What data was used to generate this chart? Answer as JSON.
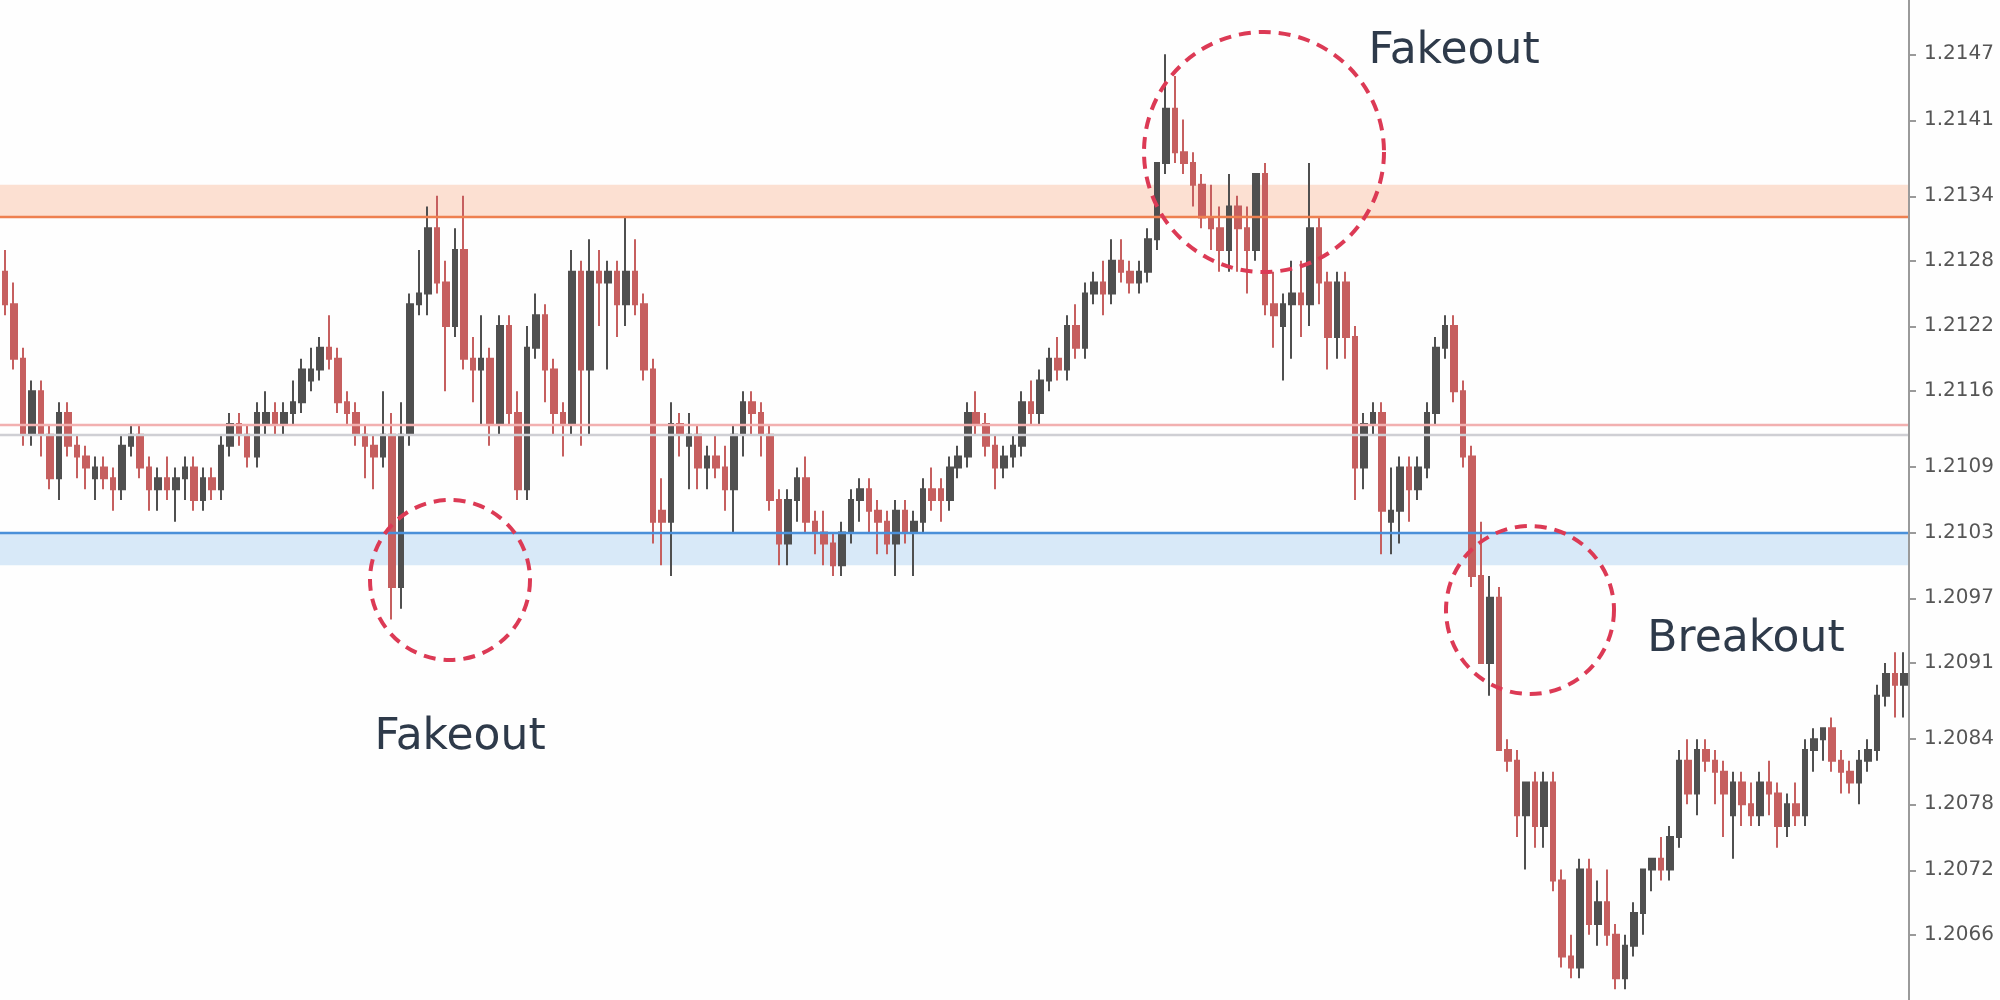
{
  "chart_data": {
    "type": "candlestick",
    "categories": [
      null,
      null,
      null,
      null,
      null,
      null,
      null,
      null,
      null,
      null,
      null,
      null,
      null,
      null,
      null,
      null,
      null,
      null,
      null,
      null,
      null,
      null,
      null,
      null,
      null,
      null,
      null,
      null,
      null,
      null,
      null,
      null,
      null,
      null,
      null,
      null,
      null,
      null,
      null,
      null,
      null,
      null,
      null,
      null,
      null,
      null,
      null,
      null,
      null,
      null,
      null,
      null,
      null,
      null,
      null,
      null,
      null,
      null,
      null,
      null,
      null,
      null,
      null,
      null,
      null,
      null,
      null,
      null,
      null,
      null,
      null,
      null,
      null,
      null,
      null,
      null,
      null,
      null,
      null,
      null,
      null,
      null,
      null,
      null,
      null,
      null,
      null,
      null,
      null,
      null,
      null,
      null,
      null,
      null,
      null,
      null,
      null,
      null,
      null,
      null,
      null,
      null,
      null,
      null,
      null,
      null,
      null,
      null,
      null,
      null,
      null,
      null,
      null,
      null,
      null,
      null,
      null,
      null,
      null,
      null,
      null,
      null,
      null,
      null,
      null,
      null,
      null,
      null,
      null,
      null,
      null,
      null,
      null,
      null,
      null,
      null,
      null,
      null,
      null,
      null,
      null,
      null,
      null,
      null,
      null,
      null,
      null,
      null,
      null,
      null,
      null,
      null,
      null,
      null,
      null,
      null,
      null,
      null,
      null,
      null,
      null,
      null,
      null,
      null,
      null,
      null,
      null,
      null,
      null,
      null,
      null,
      null,
      null,
      null,
      null,
      null,
      null,
      null,
      null,
      null,
      null,
      null,
      null,
      null,
      null,
      null,
      null,
      null,
      null,
      null,
      null,
      null,
      null,
      null,
      null,
      null,
      null,
      null,
      null,
      null,
      null,
      null,
      null,
      null,
      null,
      null,
      null,
      null,
      null,
      null,
      null,
      null
    ],
    "ohlc": [
      [
        1.2127,
        1.2129,
        1.2123,
        1.2124
      ],
      [
        1.2124,
        1.2126,
        1.2118,
        1.2119
      ],
      [
        1.2119,
        1.212,
        1.2111,
        1.2112
      ],
      [
        1.2112,
        1.2117,
        1.2111,
        1.2116
      ],
      [
        1.2116,
        1.2117,
        1.211,
        1.2112
      ],
      [
        1.2112,
        1.2113,
        1.2107,
        1.2108
      ],
      [
        1.2108,
        1.2115,
        1.2106,
        1.2114
      ],
      [
        1.2114,
        1.2115,
        1.211,
        1.2111
      ],
      [
        1.2111,
        1.2112,
        1.2108,
        1.211
      ],
      [
        1.211,
        1.2111,
        1.2107,
        1.2109
      ],
      [
        1.2108,
        1.211,
        1.2106,
        1.2109
      ],
      [
        1.2109,
        1.211,
        1.2107,
        1.2108
      ],
      [
        1.2108,
        1.2109,
        1.2105,
        1.2107
      ],
      [
        1.2107,
        1.2112,
        1.2106,
        1.2111
      ],
      [
        1.2111,
        1.2113,
        1.211,
        1.2112
      ],
      [
        1.2112,
        1.2113,
        1.2108,
        1.2109
      ],
      [
        1.2109,
        1.211,
        1.2105,
        1.2107
      ],
      [
        1.2107,
        1.2109,
        1.2105,
        1.2108
      ],
      [
        1.2108,
        1.211,
        1.2106,
        1.2107
      ],
      [
        1.2107,
        1.2109,
        1.2104,
        1.2108
      ],
      [
        1.2108,
        1.211,
        1.2106,
        1.2109
      ],
      [
        1.2109,
        1.211,
        1.2105,
        1.2106
      ],
      [
        1.2106,
        1.2109,
        1.2105,
        1.2108
      ],
      [
        1.2108,
        1.2109,
        1.2106,
        1.2107
      ],
      [
        1.2107,
        1.2112,
        1.2106,
        1.2111
      ],
      [
        1.2111,
        1.2114,
        1.211,
        1.2113
      ],
      [
        1.2113,
        1.2114,
        1.2111,
        1.2112
      ],
      [
        1.2112,
        1.2113,
        1.2109,
        1.211
      ],
      [
        1.211,
        1.2115,
        1.2109,
        1.2114
      ],
      [
        1.2113,
        1.2116,
        1.2112,
        1.2114
      ],
      [
        1.2114,
        1.2115,
        1.2112,
        1.2113
      ],
      [
        1.2113,
        1.2115,
        1.2112,
        1.2114
      ],
      [
        1.2114,
        1.2117,
        1.2113,
        1.2115
      ],
      [
        1.2115,
        1.2119,
        1.2114,
        1.2118
      ],
      [
        1.2117,
        1.212,
        1.2116,
        1.2118
      ],
      [
        1.2118,
        1.2121,
        1.2117,
        1.212
      ],
      [
        1.212,
        1.2123,
        1.2118,
        1.2119
      ],
      [
        1.2119,
        1.212,
        1.2114,
        1.2115
      ],
      [
        1.2115,
        1.2116,
        1.2113,
        1.2114
      ],
      [
        1.2114,
        1.2115,
        1.2111,
        1.2112
      ],
      [
        1.2112,
        1.2113,
        1.2108,
        1.2111
      ],
      [
        1.2111,
        1.2112,
        1.2107,
        1.211
      ],
      [
        1.211,
        1.2116,
        1.2109,
        1.2112
      ],
      [
        1.2112,
        1.2114,
        1.2095,
        1.2098
      ],
      [
        1.2098,
        1.2115,
        1.2096,
        1.2112
      ],
      [
        1.2112,
        1.2125,
        1.2111,
        1.2124
      ],
      [
        1.2124,
        1.2129,
        1.2123,
        1.2125
      ],
      [
        1.2125,
        1.2133,
        1.2123,
        1.2131
      ],
      [
        1.2131,
        1.2134,
        1.2125,
        1.2126
      ],
      [
        1.2126,
        1.2128,
        1.2116,
        1.2122
      ],
      [
        1.2122,
        1.2131,
        1.2121,
        1.2129
      ],
      [
        1.2129,
        1.2134,
        1.2118,
        1.2119
      ],
      [
        1.2119,
        1.2121,
        1.2115,
        1.2118
      ],
      [
        1.2118,
        1.2123,
        1.2113,
        1.2119
      ],
      [
        1.2119,
        1.212,
        1.2111,
        1.2113
      ],
      [
        1.2113,
        1.2123,
        1.2112,
        1.2122
      ],
      [
        1.2122,
        1.2123,
        1.2113,
        1.2114
      ],
      [
        1.2114,
        1.2116,
        1.2106,
        1.2107
      ],
      [
        1.2107,
        1.2122,
        1.2106,
        1.212
      ],
      [
        1.212,
        1.2125,
        1.2119,
        1.2123
      ],
      [
        1.2123,
        1.2124,
        1.2115,
        1.2118
      ],
      [
        1.2118,
        1.2119,
        1.2112,
        1.2114
      ],
      [
        1.2114,
        1.2115,
        1.211,
        1.2113
      ],
      [
        1.2113,
        1.2129,
        1.2112,
        1.2127
      ],
      [
        1.2127,
        1.2128,
        1.2111,
        1.2118
      ],
      [
        1.2118,
        1.213,
        1.2112,
        1.2127
      ],
      [
        1.2127,
        1.2129,
        1.2122,
        1.2126
      ],
      [
        1.2126,
        1.2128,
        1.2118,
        1.2127
      ],
      [
        1.2127,
        1.2128,
        1.2121,
        1.2124
      ],
      [
        1.2124,
        1.2132,
        1.2122,
        1.2127
      ],
      [
        1.2127,
        1.213,
        1.2123,
        1.2124
      ],
      [
        1.2124,
        1.2125,
        1.2117,
        1.2118
      ],
      [
        1.2118,
        1.2119,
        1.2102,
        1.2104
      ],
      [
        1.2105,
        1.2108,
        1.21,
        1.2104
      ],
      [
        1.2104,
        1.2115,
        1.2099,
        1.2113
      ],
      [
        1.2113,
        1.2114,
        1.211,
        1.2112
      ],
      [
        1.2111,
        1.2114,
        1.2107,
        1.2112
      ],
      [
        1.2112,
        1.2113,
        1.2107,
        1.2109
      ],
      [
        1.2109,
        1.2111,
        1.2107,
        1.211
      ],
      [
        1.211,
        1.2112,
        1.2108,
        1.2109
      ],
      [
        1.2109,
        1.2111,
        1.2105,
        1.2107
      ],
      [
        1.2107,
        1.2113,
        1.2103,
        1.2112
      ],
      [
        1.2112,
        1.2116,
        1.211,
        1.2115
      ],
      [
        1.2115,
        1.2116,
        1.2112,
        1.2114
      ],
      [
        1.2114,
        1.2115,
        1.211,
        1.2112
      ],
      [
        1.2112,
        1.2113,
        1.2105,
        1.2106
      ],
      [
        1.2106,
        1.2107,
        1.21,
        1.2102
      ],
      [
        1.2102,
        1.2107,
        1.21,
        1.2106
      ],
      [
        1.2106,
        1.2109,
        1.2104,
        1.2108
      ],
      [
        1.2108,
        1.211,
        1.2103,
        1.2104
      ],
      [
        1.2104,
        1.2105,
        1.2101,
        1.2103
      ],
      [
        1.2103,
        1.2105,
        1.21,
        1.2102
      ],
      [
        1.2102,
        1.2103,
        1.2099,
        1.21
      ],
      [
        1.21,
        1.2104,
        1.2099,
        1.2103
      ],
      [
        1.2103,
        1.2107,
        1.2102,
        1.2106
      ],
      [
        1.2106,
        1.2108,
        1.2104,
        1.2107
      ],
      [
        1.2107,
        1.2108,
        1.2103,
        1.2105
      ],
      [
        1.2105,
        1.2106,
        1.2101,
        1.2104
      ],
      [
        1.2104,
        1.2105,
        1.2101,
        1.2102
      ],
      [
        1.2102,
        1.2106,
        1.2099,
        1.2105
      ],
      [
        1.2105,
        1.2106,
        1.2102,
        1.2103
      ],
      [
        1.2103,
        1.2105,
        1.2099,
        1.2104
      ],
      [
        1.2104,
        1.2108,
        1.2103,
        1.2107
      ],
      [
        1.2107,
        1.2109,
        1.2105,
        1.2106
      ],
      [
        1.2107,
        1.2108,
        1.2104,
        1.2106
      ],
      [
        1.2106,
        1.211,
        1.2105,
        1.2109
      ],
      [
        1.2109,
        1.2111,
        1.2108,
        1.211
      ],
      [
        1.211,
        1.2115,
        1.2109,
        1.2114
      ],
      [
        1.2114,
        1.2116,
        1.2112,
        1.2113
      ],
      [
        1.2113,
        1.2114,
        1.211,
        1.2111
      ],
      [
        1.2111,
        1.2112,
        1.2107,
        1.2109
      ],
      [
        1.2109,
        1.2111,
        1.2108,
        1.211
      ],
      [
        1.211,
        1.2112,
        1.2109,
        1.2111
      ],
      [
        1.2111,
        1.2116,
        1.211,
        1.2115
      ],
      [
        1.2115,
        1.2117,
        1.2113,
        1.2114
      ],
      [
        1.2114,
        1.2118,
        1.2113,
        1.2117
      ],
      [
        1.2117,
        1.212,
        1.2116,
        1.2119
      ],
      [
        1.2119,
        1.2121,
        1.2117,
        1.2118
      ],
      [
        1.2118,
        1.2123,
        1.2117,
        1.2122
      ],
      [
        1.2122,
        1.2124,
        1.2119,
        1.212
      ],
      [
        1.212,
        1.2126,
        1.2119,
        1.2125
      ],
      [
        1.2125,
        1.2127,
        1.2124,
        1.2126
      ],
      [
        1.2126,
        1.2128,
        1.2123,
        1.2125
      ],
      [
        1.2125,
        1.213,
        1.2124,
        1.2128
      ],
      [
        1.2128,
        1.213,
        1.2126,
        1.2127
      ],
      [
        1.2127,
        1.2128,
        1.2125,
        1.2126
      ],
      [
        1.2126,
        1.2128,
        1.2125,
        1.2127
      ],
      [
        1.2127,
        1.2131,
        1.2126,
        1.213
      ],
      [
        1.213,
        1.2137,
        1.2129,
        1.2137
      ],
      [
        1.2137,
        1.2147,
        1.2136,
        1.2142
      ],
      [
        1.2142,
        1.2145,
        1.2137,
        1.2138
      ],
      [
        1.2138,
        1.2141,
        1.2136,
        1.2137
      ],
      [
        1.2137,
        1.2138,
        1.2133,
        1.2135
      ],
      [
        1.2135,
        1.2136,
        1.2131,
        1.2132
      ],
      [
        1.2132,
        1.2135,
        1.2129,
        1.2131
      ],
      [
        1.2131,
        1.2133,
        1.2127,
        1.2129
      ],
      [
        1.2129,
        1.2136,
        1.2127,
        1.2133
      ],
      [
        1.2133,
        1.2134,
        1.2127,
        1.2131
      ],
      [
        1.2131,
        1.2133,
        1.2125,
        1.2129
      ],
      [
        1.2129,
        1.2136,
        1.2128,
        1.2136
      ],
      [
        1.2136,
        1.2137,
        1.2123,
        1.2124
      ],
      [
        1.2124,
        1.2127,
        1.212,
        1.2123
      ],
      [
        1.2122,
        1.2125,
        1.2117,
        1.2124
      ],
      [
        1.2124,
        1.2128,
        1.2119,
        1.2125
      ],
      [
        1.2125,
        1.2128,
        1.2121,
        1.2124
      ],
      [
        1.2124,
        1.2137,
        1.2122,
        1.2131
      ],
      [
        1.2131,
        1.2132,
        1.2124,
        1.2126
      ],
      [
        1.2126,
        1.2127,
        1.2118,
        1.2121
      ],
      [
        1.2121,
        1.2127,
        1.2119,
        1.2126
      ],
      [
        1.2126,
        1.2127,
        1.2119,
        1.2121
      ],
      [
        1.2121,
        1.2122,
        1.2106,
        1.2109
      ],
      [
        1.2109,
        1.2114,
        1.2107,
        1.2113
      ],
      [
        1.2113,
        1.2115,
        1.2112,
        1.2114
      ],
      [
        1.2114,
        1.2115,
        1.2101,
        1.2105
      ],
      [
        1.2104,
        1.2109,
        1.2101,
        1.2105
      ],
      [
        1.2105,
        1.211,
        1.2102,
        1.2109
      ],
      [
        1.2109,
        1.211,
        1.2104,
        1.2107
      ],
      [
        1.2107,
        1.211,
        1.2106,
        1.2109
      ],
      [
        1.2109,
        1.2115,
        1.2108,
        1.2114
      ],
      [
        1.2114,
        1.2121,
        1.2113,
        1.212
      ],
      [
        1.212,
        1.2123,
        1.2119,
        1.2122
      ],
      [
        1.2122,
        1.2123,
        1.2115,
        1.2116
      ],
      [
        1.2116,
        1.2117,
        1.2109,
        1.211
      ],
      [
        1.211,
        1.2111,
        1.2098,
        1.2099
      ],
      [
        1.2099,
        1.2104,
        1.2091,
        1.2091
      ],
      [
        1.2091,
        1.2099,
        1.2088,
        1.2097
      ],
      [
        1.2097,
        1.2098,
        1.2083,
        1.2083
      ],
      [
        1.2083,
        1.2084,
        1.2081,
        1.2082
      ],
      [
        1.2082,
        1.2083,
        1.2075,
        1.2077
      ],
      [
        1.2077,
        1.208,
        1.2072,
        1.208
      ],
      [
        1.208,
        1.2081,
        1.2074,
        1.2076
      ],
      [
        1.2076,
        1.2081,
        1.2074,
        1.208
      ],
      [
        1.208,
        1.2081,
        1.207,
        1.2071
      ],
      [
        1.2071,
        1.2072,
        1.2063,
        1.2064
      ],
      [
        1.2064,
        1.2066,
        1.2062,
        1.2063
      ],
      [
        1.2063,
        1.2073,
        1.2062,
        1.2072
      ],
      [
        1.2072,
        1.2073,
        1.2066,
        1.2067
      ],
      [
        1.2067,
        1.2071,
        1.2065,
        1.2069
      ],
      [
        1.2069,
        1.2072,
        1.2065,
        1.2066
      ],
      [
        1.2066,
        1.2067,
        1.2061,
        1.2062
      ],
      [
        1.2062,
        1.2066,
        1.2061,
        1.2065
      ],
      [
        1.2065,
        1.2069,
        1.2064,
        1.2068
      ],
      [
        1.2068,
        1.2072,
        1.2066,
        1.2072
      ],
      [
        1.2072,
        1.2073,
        1.207,
        1.2073
      ],
      [
        1.2073,
        1.2075,
        1.2071,
        1.2072
      ],
      [
        1.2072,
        1.2076,
        1.2071,
        1.2075
      ],
      [
        1.2075,
        1.2083,
        1.2074,
        1.2082
      ],
      [
        1.2082,
        1.2084,
        1.2078,
        1.2079
      ],
      [
        1.2079,
        1.2084,
        1.2077,
        1.2083
      ],
      [
        1.2083,
        1.2084,
        1.2081,
        1.2082
      ],
      [
        1.2082,
        1.2083,
        1.2078,
        1.2081
      ],
      [
        1.2081,
        1.2082,
        1.2075,
        1.2079
      ],
      [
        1.2077,
        1.2081,
        1.2073,
        1.208
      ],
      [
        1.208,
        1.2081,
        1.2076,
        1.2078
      ],
      [
        1.2078,
        1.208,
        1.2076,
        1.2077
      ],
      [
        1.2077,
        1.2081,
        1.2076,
        1.208
      ],
      [
        1.208,
        1.2082,
        1.2077,
        1.2079
      ],
      [
        1.2079,
        1.208,
        1.2074,
        1.2076
      ],
      [
        1.2076,
        1.2079,
        1.2075,
        1.2078
      ],
      [
        1.2078,
        1.208,
        1.2076,
        1.2077
      ],
      [
        1.2077,
        1.2084,
        1.2076,
        1.2083
      ],
      [
        1.2083,
        1.2085,
        1.2081,
        1.2084
      ],
      [
        1.2084,
        1.2085,
        1.2082,
        1.2085
      ],
      [
        1.2085,
        1.2086,
        1.2081,
        1.2082
      ],
      [
        1.2082,
        1.2083,
        1.2079,
        1.2081
      ],
      [
        1.2081,
        1.2082,
        1.2079,
        1.208
      ],
      [
        1.208,
        1.2083,
        1.2078,
        1.2082
      ],
      [
        1.2082,
        1.2084,
        1.2081,
        1.2083
      ],
      [
        1.2083,
        1.2089,
        1.2082,
        1.2088
      ],
      [
        1.2088,
        1.2091,
        1.2087,
        1.209
      ],
      [
        1.209,
        1.2092,
        1.2086,
        1.2089
      ],
      [
        1.2089,
        1.2092,
        1.2086,
        1.209
      ]
    ],
    "colors": [
      "#c65f5f",
      "#c65f5f",
      "#c65f5f",
      "#4f4f4f",
      "#c65f5f",
      "#c65f5f",
      "#4f4f4f",
      "#c65f5f",
      "#c65f5f",
      "#c65f5f",
      "#4f4f4f",
      "#c65f5f",
      "#c65f5f",
      "#4f4f4f",
      "#4f4f4f",
      "#c65f5f",
      "#c65f5f",
      "#4f4f4f",
      "#c65f5f",
      "#4f4f4f",
      "#4f4f4f",
      "#c65f5f",
      "#4f4f4f",
      "#c65f5f",
      "#4f4f4f",
      "#4f4f4f",
      "#c65f5f",
      "#c65f5f",
      "#4f4f4f",
      "#4f4f4f",
      "#c65f5f",
      "#4f4f4f",
      "#4f4f4f",
      "#4f4f4f",
      "#4f4f4f",
      "#4f4f4f",
      "#c65f5f",
      "#c65f5f",
      "#c65f5f",
      "#c65f5f",
      "#c65f5f",
      "#c65f5f",
      "#4f4f4f",
      "#c65f5f",
      "#4f4f4f",
      "#4f4f4f",
      "#4f4f4f",
      "#4f4f4f",
      "#c65f5f",
      "#c65f5f",
      "#4f4f4f",
      "#c65f5f",
      "#c65f5f",
      "#4f4f4f",
      "#c65f5f",
      "#4f4f4f",
      "#c65f5f",
      "#c65f5f",
      "#4f4f4f",
      "#4f4f4f",
      "#c65f5f",
      "#c65f5f",
      "#c65f5f",
      "#4f4f4f",
      "#c65f5f",
      "#4f4f4f",
      "#c65f5f",
      "#4f4f4f",
      "#c65f5f",
      "#4f4f4f",
      "#c65f5f",
      "#c65f5f",
      "#c65f5f",
      "#c65f5f",
      "#4f4f4f",
      "#c65f5f",
      "#4f4f4f",
      "#c65f5f",
      "#4f4f4f",
      "#c65f5f",
      "#c65f5f",
      "#4f4f4f",
      "#4f4f4f",
      "#c65f5f",
      "#c65f5f",
      "#c65f5f",
      "#c65f5f",
      "#4f4f4f",
      "#4f4f4f",
      "#c65f5f",
      "#c65f5f",
      "#c65f5f",
      "#c65f5f",
      "#4f4f4f",
      "#4f4f4f",
      "#4f4f4f",
      "#c65f5f",
      "#c65f5f",
      "#c65f5f",
      "#4f4f4f",
      "#c65f5f",
      "#4f4f4f",
      "#4f4f4f",
      "#c65f5f",
      "#c65f5f",
      "#4f4f4f",
      "#4f4f4f",
      "#4f4f4f",
      "#c65f5f",
      "#c65f5f",
      "#c65f5f",
      "#4f4f4f",
      "#4f4f4f",
      "#4f4f4f",
      "#c65f5f",
      "#4f4f4f",
      "#4f4f4f",
      "#c65f5f",
      "#4f4f4f",
      "#c65f5f",
      "#4f4f4f",
      "#4f4f4f",
      "#c65f5f",
      "#4f4f4f",
      "#c65f5f",
      "#c65f5f",
      "#4f4f4f",
      "#4f4f4f",
      "#4f4f4f",
      "#4f4f4f",
      "#c65f5f",
      "#c65f5f",
      "#c65f5f",
      "#c65f5f",
      "#c65f5f",
      "#c65f5f",
      "#4f4f4f",
      "#c65f5f",
      "#c65f5f",
      "#4f4f4f",
      "#c65f5f",
      "#c65f5f",
      "#4f4f4f",
      "#4f4f4f",
      "#c65f5f",
      "#4f4f4f",
      "#c65f5f",
      "#c65f5f",
      "#4f4f4f",
      "#c65f5f",
      "#c65f5f",
      "#4f4f4f",
      "#4f4f4f",
      "#c65f5f",
      "#4f4f4f",
      "#4f4f4f",
      "#c65f5f",
      "#4f4f4f",
      "#4f4f4f",
      "#4f4f4f",
      "#4f4f4f",
      "#c65f5f",
      "#c65f5f",
      "#c65f5f",
      "#c65f5f",
      "#4f4f4f",
      "#c65f5f",
      "#c65f5f",
      "#c65f5f",
      "#4f4f4f",
      "#c65f5f",
      "#4f4f4f",
      "#c65f5f",
      "#c65f5f",
      "#c65f5f",
      "#4f4f4f",
      "#c65f5f",
      "#4f4f4f",
      "#c65f5f",
      "#c65f5f",
      "#4f4f4f",
      "#4f4f4f",
      "#4f4f4f",
      "#4f4f4f",
      "#c65f5f",
      "#4f4f4f",
      "#4f4f4f",
      "#c65f5f",
      "#4f4f4f",
      "#c65f5f",
      "#c65f5f",
      "#c65f5f",
      "#4f4f4f",
      "#c65f5f",
      "#c65f5f",
      "#4f4f4f",
      "#c65f5f",
      "#c65f5f",
      "#4f4f4f",
      "#c65f5f",
      "#4f4f4f",
      "#4f4f4f",
      "#4f4f4f",
      "#c65f5f",
      "#c65f5f",
      "#c65f5f",
      "#4f4f4f",
      "#4f4f4f",
      "#4f4f4f",
      "#4f4f4f",
      "#c65f5f",
      "#4f4f4f"
    ],
    "ylim": [
      1.206,
      1.2152
    ],
    "yticks": [
      1.2147,
      1.2141,
      1.2134,
      1.2128,
      1.2122,
      1.2116,
      1.2109,
      1.2103,
      1.2097,
      1.2091,
      1.2084,
      1.2078,
      1.2072,
      1.2066
    ],
    "tick_labels": "y",
    "grid": false,
    "bands": [
      {
        "axis": "y",
        "from": 1.2132,
        "to": 1.2135,
        "color": "#fce0d2"
      },
      {
        "axis": "y",
        "from": 1.21,
        "to": 1.2103,
        "color": "#d8e9f8"
      }
    ],
    "ref_lines": [
      {
        "axis": "y",
        "value": 1.2132,
        "color": "#ee8050"
      },
      {
        "axis": "y",
        "value": 1.2103,
        "color": "#4a90d9"
      },
      {
        "axis": "y",
        "value": 1.2113,
        "color": "#f2b0b0"
      },
      {
        "axis": "y",
        "value": 1.2112,
        "color": "#cfcfd4"
      }
    ],
    "annotations": [
      "Fakeout",
      "Fakeout",
      "Breakout"
    ]
  }
}
